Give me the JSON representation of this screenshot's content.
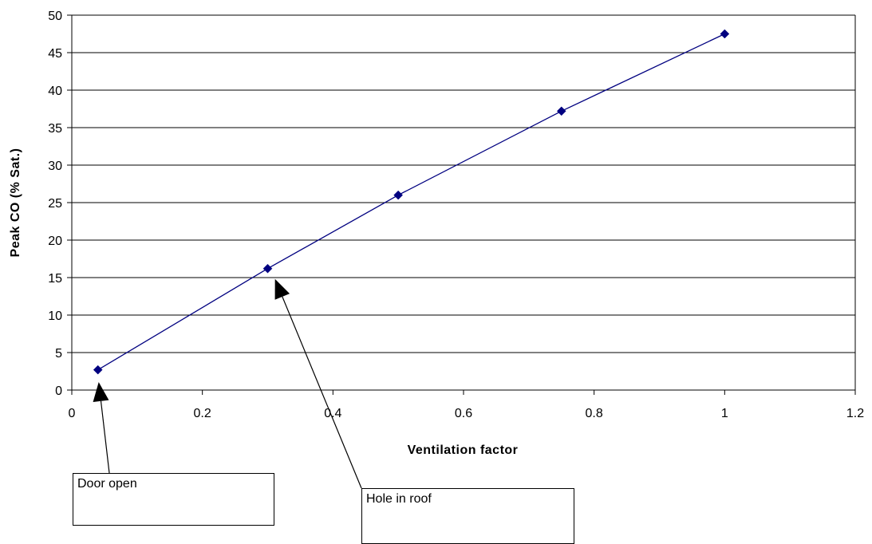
{
  "chart_data": {
    "type": "line",
    "title": "",
    "xlabel": "Ventilation factor",
    "ylabel": "Peak CO (% Sat.)",
    "xlim": [
      0,
      1.2
    ],
    "ylim": [
      0,
      50
    ],
    "x_ticks": [
      0,
      0.2,
      0.4,
      0.6,
      0.8,
      1,
      1.2
    ],
    "y_ticks": [
      0,
      5,
      10,
      15,
      20,
      25,
      30,
      35,
      40,
      45,
      50
    ],
    "grid": "horizontal",
    "legend": "none",
    "series": [
      {
        "marker": "diamond",
        "color": "#000080",
        "points": [
          {
            "x": 0.04,
            "y": 2.7
          },
          {
            "x": 0.3,
            "y": 16.2
          },
          {
            "x": 0.5,
            "y": 26.0
          },
          {
            "x": 0.75,
            "y": 37.2
          },
          {
            "x": 1.0,
            "y": 47.5
          }
        ]
      }
    ],
    "annotations": [
      {
        "text": "Door open",
        "points_to": {
          "x": 0.04,
          "y": 0
        }
      },
      {
        "text": "Hole in roof",
        "points_to": {
          "x": 0.31,
          "y": 14.5
        }
      }
    ]
  }
}
